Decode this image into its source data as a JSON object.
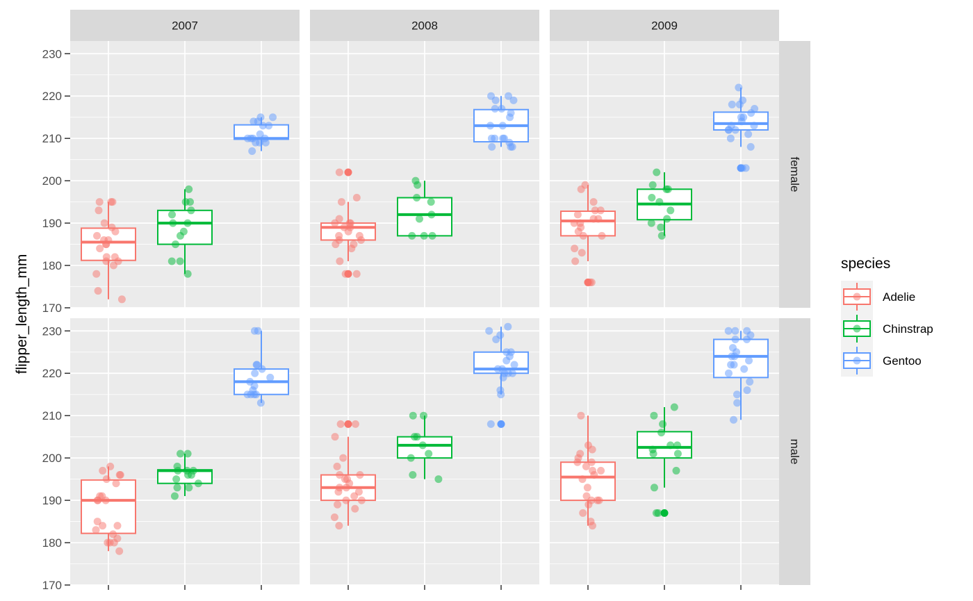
{
  "chart_data": {
    "type": "box",
    "ylabel": "flipper_length_mm",
    "xlabel": "",
    "ylim": [
      170,
      233
    ],
    "yticks": [
      170,
      180,
      190,
      200,
      210,
      220,
      230
    ],
    "categories": [
      "Adelie",
      "Chinstrap",
      "Gentoo"
    ],
    "facet_cols": [
      "2007",
      "2008",
      "2009"
    ],
    "facet_rows": [
      "female",
      "male"
    ],
    "legend": {
      "title": "species",
      "position": "right",
      "entries": [
        {
          "label": "Adelie",
          "color": "#F8766D"
        },
        {
          "label": "Chinstrap",
          "color": "#00BA38"
        },
        {
          "label": "Gentoo",
          "color": "#619CFF"
        }
      ]
    },
    "colors": {
      "Adelie": "#F8766D",
      "Chinstrap": "#00BA38",
      "Gentoo": "#619CFF",
      "panel_bg": "#EBEBEB",
      "strip_bg": "#D9D9D9"
    },
    "grid": true,
    "panels": [
      {
        "year": "2007",
        "sex": "female",
        "boxes": [
          {
            "species": "Adelie",
            "q1": 181.2,
            "median": 185.5,
            "q3": 188.8,
            "whisker_low": 172,
            "whisker_high": 195,
            "outliers": [],
            "points": [
              174,
              172,
              195,
              195,
              193,
              195,
              190,
              189,
              187,
              188,
              186,
              186,
              185,
              185,
              184,
              182,
              182,
              181,
              181,
              180,
              178
            ]
          },
          {
            "species": "Chinstrap",
            "q1": 185,
            "median": 190,
            "q3": 193,
            "whisker_low": 178,
            "whisker_high": 198,
            "outliers": [],
            "points": [
              195,
              198,
              195,
              193,
              192,
              190,
              190,
              188,
              187,
              185,
              181,
              181,
              178
            ]
          },
          {
            "species": "Gentoo",
            "q1": 209.8,
            "median": 210,
            "q3": 213.2,
            "whisker_low": 207,
            "whisker_high": 215,
            "outliers": [],
            "points": [
              215,
              215,
              214,
              214,
              213,
              213,
              211,
              210,
              210,
              210,
              210,
              209,
              209,
              209,
              207
            ]
          }
        ]
      },
      {
        "year": "2008",
        "sex": "female",
        "boxes": [
          {
            "species": "Adelie",
            "q1": 186,
            "median": 189,
            "q3": 190,
            "whisker_low": 181,
            "whisker_high": 195,
            "outliers": [
              202,
              178
            ],
            "points": [
              202,
              196,
              195,
              191,
              190,
              190,
              190,
              189,
              189,
              188,
              187,
              187,
              186,
              186,
              185,
              185,
              184,
              181,
              178,
              178
            ]
          },
          {
            "species": "Chinstrap",
            "q1": 187,
            "median": 192,
            "q3": 196,
            "whisker_low": 187,
            "whisker_high": 200,
            "outliers": [],
            "points": [
              200,
              199,
              196,
              195,
              192,
              191,
              187,
              187,
              187
            ]
          },
          {
            "species": "Gentoo",
            "q1": 209.2,
            "median": 213,
            "q3": 216.8,
            "whisker_low": 208,
            "whisker_high": 220,
            "outliers": [],
            "points": [
              220,
              220,
              219,
              219,
              217,
              217,
              216,
              215,
              213,
              213,
              210,
              210,
              210,
              210,
              209,
              208,
              208,
              208
            ]
          }
        ]
      },
      {
        "year": "2009",
        "sex": "female",
        "boxes": [
          {
            "species": "Adelie",
            "q1": 187,
            "median": 190.5,
            "q3": 192.8,
            "whisker_low": 181,
            "whisker_high": 199,
            "outliers": [
              176
            ],
            "points": [
              199,
              198,
              195,
              193,
              193,
              192,
              191,
              191,
              190,
              190,
              189,
              188,
              187,
              187,
              184,
              183,
              181,
              176,
              176
            ]
          },
          {
            "species": "Chinstrap",
            "q1": 190.8,
            "median": 194.5,
            "q3": 198,
            "whisker_low": 187,
            "whisker_high": 202,
            "outliers": [],
            "points": [
              202,
              199,
              198,
              198,
              196,
              195,
              193,
              191,
              190,
              189,
              187
            ]
          },
          {
            "species": "Gentoo",
            "q1": 212,
            "median": 213.5,
            "q3": 216.2,
            "whisker_low": 208,
            "whisker_high": 222,
            "outliers": [
              203
            ],
            "points": [
              222,
              219,
              218,
              218,
              217,
              216,
              215,
              215,
              214,
              213,
              213,
              212,
              212,
              212,
              211,
              210,
              208,
              203,
              203
            ]
          }
        ]
      },
      {
        "year": "2007",
        "sex": "male",
        "boxes": [
          {
            "species": "Adelie",
            "q1": 182.2,
            "median": 190,
            "q3": 194.8,
            "whisker_low": 178,
            "whisker_high": 198,
            "outliers": [],
            "points": [
              198,
              197,
              196,
              196,
              195,
              194,
              191,
              191,
              190,
              190,
              190,
              185,
              184,
              184,
              183,
              182,
              181,
              180,
              180,
              180,
              178
            ]
          },
          {
            "species": "Chinstrap",
            "q1": 194,
            "median": 197,
            "q3": 197.2,
            "whisker_low": 191,
            "whisker_high": 201,
            "outliers": [],
            "points": [
              201,
              201,
              198,
              197,
              197,
              197,
              196,
              196,
              195,
              194,
              193,
              193,
              191
            ]
          },
          {
            "species": "Gentoo",
            "q1": 215,
            "median": 218,
            "q3": 221,
            "whisker_low": 213,
            "whisker_high": 230,
            "outliers": [],
            "points": [
              230,
              230,
              222,
              222,
              221,
              220,
              219,
              218,
              217,
              216,
              215,
              215,
              215,
              215,
              213
            ]
          }
        ]
      },
      {
        "year": "2008",
        "sex": "male",
        "boxes": [
          {
            "species": "Adelie",
            "q1": 190,
            "median": 193,
            "q3": 196,
            "whisker_low": 184,
            "whisker_high": 205,
            "outliers": [
              208
            ],
            "points": [
              208,
              208,
              205,
              200,
              198,
              196,
              196,
              195,
              195,
              194,
              193,
              193,
              192,
              192,
              191,
              190,
              190,
              189,
              188,
              186,
              184
            ]
          },
          {
            "species": "Chinstrap",
            "q1": 200,
            "median": 203,
            "q3": 205,
            "whisker_low": 195,
            "whisker_high": 210,
            "outliers": [],
            "points": [
              210,
              210,
              205,
              205,
              203,
              201,
              200,
              196,
              195
            ]
          },
          {
            "species": "Gentoo",
            "q1": 220,
            "median": 221,
            "q3": 225,
            "whisker_low": 215,
            "whisker_high": 231,
            "outliers": [
              208
            ],
            "points": [
              231,
              230,
              229,
              228,
              225,
              225,
              224,
              223,
              222,
              221,
              221,
              220,
              220,
              220,
              219,
              216,
              215,
              208
            ]
          }
        ]
      },
      {
        "year": "2009",
        "sex": "male",
        "boxes": [
          {
            "species": "Adelie",
            "q1": 190,
            "median": 195.5,
            "q3": 199,
            "whisker_low": 184,
            "whisker_high": 210,
            "outliers": [],
            "points": [
              210,
              203,
              202,
              201,
              200,
              199,
              199,
              198,
              197,
              197,
              196,
              195,
              193,
              191,
              190,
              190,
              190,
              189,
              187,
              185,
              184
            ]
          },
          {
            "species": "Chinstrap",
            "q1": 200,
            "median": 202.5,
            "q3": 206.2,
            "whisker_low": 193,
            "whisker_high": 212,
            "outliers": [
              187
            ],
            "points": [
              212,
              210,
              208,
              206,
              203,
              203,
              202,
              201,
              201,
              197,
              193,
              187,
              187
            ]
          },
          {
            "species": "Gentoo",
            "q1": 219,
            "median": 224,
            "q3": 228,
            "whisker_low": 209,
            "whisker_high": 230,
            "outliers": [],
            "points": [
              230,
              230,
              230,
              229,
              228,
              228,
              226,
              225,
              224,
              224,
              223,
              222,
              222,
              221,
              220,
              218,
              216,
              215,
              213,
              209
            ]
          }
        ]
      }
    ]
  }
}
